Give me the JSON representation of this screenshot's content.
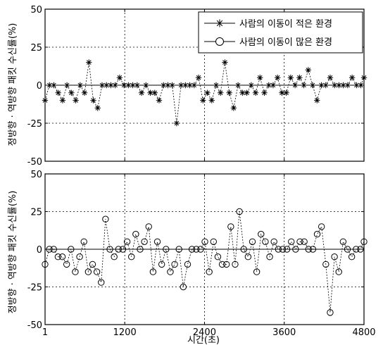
{
  "chart_data": {
    "type": "line",
    "xlabel": "시간(초)",
    "ylabel": "정방향 · 역방향 패킷 수신률(%)",
    "xlim": [
      1,
      4800
    ],
    "ylim": [
      -50,
      50
    ],
    "xticks": [
      1,
      1200,
      2400,
      3600,
      4800
    ],
    "yticks": [
      50,
      25,
      0,
      -25,
      -50
    ],
    "grid": true,
    "panels": [
      {
        "legend_position": "top-right",
        "series": [
          {
            "name": "사람의 이동이 적은 환경",
            "marker": "star",
            "x": [
              1,
              67,
              133,
              199,
              265,
              331,
              397,
              463,
              529,
              595,
              661,
              727,
              793,
              859,
              925,
              991,
              1057,
              1123,
              1189,
              1255,
              1321,
              1387,
              1453,
              1519,
              1585,
              1651,
              1717,
              1783,
              1849,
              1915,
              1981,
              2047,
              2113,
              2179,
              2245,
              2311,
              2377,
              2443,
              2509,
              2575,
              2641,
              2707,
              2773,
              2839,
              2905,
              2971,
              3037,
              3103,
              3169,
              3235,
              3301,
              3367,
              3433,
              3499,
              3565,
              3631,
              3697,
              3763,
              3829,
              3895,
              3961,
              4027,
              4093,
              4159,
              4225,
              4291,
              4357,
              4423,
              4489,
              4555,
              4621,
              4687,
              4753,
              4800
            ],
            "y": [
              -10,
              0,
              0,
              -5,
              -10,
              0,
              -5,
              -10,
              0,
              -5,
              15,
              -10,
              -15,
              0,
              0,
              0,
              0,
              5,
              0,
              0,
              0,
              0,
              -5,
              0,
              -5,
              -5,
              -10,
              0,
              0,
              0,
              -25,
              0,
              0,
              0,
              0,
              5,
              -10,
              -5,
              -10,
              0,
              -5,
              15,
              -5,
              -15,
              0,
              -5,
              -5,
              0,
              -5,
              5,
              -5,
              0,
              0,
              5,
              -5,
              -5,
              5,
              0,
              5,
              0,
              10,
              0,
              -10,
              0,
              0,
              5,
              0,
              0,
              0,
              0,
              5,
              0,
              0,
              5
            ]
          }
        ]
      },
      {
        "legend_position": "top-right",
        "series": [
          {
            "name": "사람의 이동이 많은 환경",
            "marker": "circle",
            "x": [
              1,
              66,
              131,
              196,
              261,
              326,
              391,
              456,
              521,
              586,
              651,
              716,
              781,
              846,
              911,
              976,
              1041,
              1106,
              1171,
              1236,
              1301,
              1366,
              1431,
              1496,
              1561,
              1626,
              1691,
              1756,
              1821,
              1886,
              1951,
              2016,
              2081,
              2146,
              2211,
              2276,
              2341,
              2406,
              2471,
              2536,
              2601,
              2666,
              2731,
              2796,
              2861,
              2926,
              2991,
              3056,
              3121,
              3186,
              3251,
              3316,
              3381,
              3446,
              3511,
              3576,
              3641,
              3706,
              3771,
              3836,
              3901,
              3966,
              4031,
              4096,
              4161,
              4226,
              4291,
              4356,
              4421,
              4486,
              4551,
              4616,
              4681,
              4746,
              4800
            ],
            "y": [
              -10,
              0,
              0,
              -5,
              -5,
              -10,
              0,
              -15,
              -5,
              5,
              -15,
              -10,
              -15,
              -22,
              20,
              0,
              -5,
              0,
              0,
              5,
              -5,
              10,
              0,
              5,
              15,
              -15,
              5,
              -10,
              0,
              -15,
              -10,
              0,
              -25,
              -10,
              0,
              0,
              0,
              5,
              -15,
              5,
              -5,
              -10,
              -10,
              15,
              -10,
              25,
              0,
              -5,
              5,
              -15,
              10,
              5,
              -5,
              5,
              0,
              0,
              0,
              5,
              0,
              5,
              5,
              0,
              0,
              10,
              15,
              -10,
              -42,
              -5,
              -15,
              5,
              0,
              -5,
              0,
              0,
              5
            ]
          }
        ]
      }
    ]
  }
}
